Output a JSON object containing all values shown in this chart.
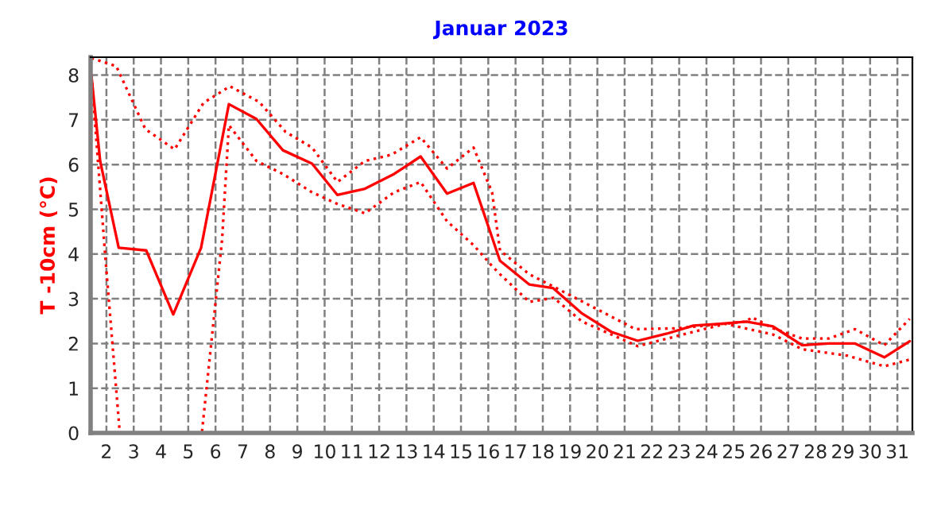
{
  "chart_data": {
    "type": "line",
    "title": "Januar 2023",
    "ylabel": "T -10cm (°C)",
    "xlim": [
      1.42,
      31.55
    ],
    "xticks": [
      2,
      3,
      4,
      5,
      6,
      7,
      8,
      9,
      10,
      11,
      12,
      13,
      14,
      15,
      16,
      17,
      18,
      19,
      20,
      21,
      22,
      23,
      24,
      25,
      26,
      27,
      28,
      29,
      30,
      31
    ],
    "ylim": [
      0,
      8.4
    ],
    "yticks": [
      0,
      1,
      2,
      3,
      4,
      5,
      6,
      7,
      8
    ],
    "grid": true,
    "series": [
      {
        "color": "#ff0000",
        "line_style": "dotted",
        "x": [
          1.45,
          2.36,
          3.43,
          4.5,
          5.56,
          6.53,
          7.6,
          8.57,
          9.54,
          10.47,
          11.48,
          12.45,
          13.52,
          14.49,
          15.46,
          16.14,
          16.43,
          17.5,
          18.87,
          21.4,
          22.94,
          25.47,
          25.66,
          26.44,
          27.51,
          28.48,
          29.45,
          30.52,
          31.45
        ],
        "values": [
          8.38,
          8.2,
          6.79,
          6.34,
          7.38,
          7.75,
          7.4,
          6.73,
          6.38,
          5.61,
          6.08,
          6.22,
          6.61,
          5.91,
          6.38,
          5.38,
          4.08,
          3.55,
          3.12,
          2.32,
          2.34,
          2.49,
          2.59,
          2.34,
          2.11,
          2.11,
          2.32,
          1.96,
          2.55
        ]
      },
      {
        "color": "#ff0000",
        "line_style": "solid",
        "x": [
          1.45,
          1.77,
          2.45,
          3.46,
          4.45,
          5.47,
          6.49,
          7.5,
          8.47,
          9.54,
          10.47,
          11.48,
          12.55,
          13.52,
          14.49,
          15.46,
          16.43,
          17.5,
          18.37,
          19.44,
          20.51,
          21.48,
          22.55,
          23.52,
          24.49,
          25.47,
          26.44,
          27.51,
          28.48,
          29.45,
          30.52,
          31.45
        ],
        "values": [
          7.99,
          6.08,
          4.14,
          4.08,
          2.65,
          4.14,
          7.35,
          7.02,
          6.32,
          6.02,
          5.32,
          5.46,
          5.79,
          6.18,
          5.35,
          5.59,
          3.85,
          3.32,
          3.24,
          2.67,
          2.26,
          2.06,
          2.22,
          2.4,
          2.44,
          2.49,
          2.38,
          1.96,
          2.0,
          2.0,
          1.69,
          2.05
        ]
      },
      {
        "color": "#ff0000",
        "line_style": "dotted",
        "x": [
          1.45,
          1.97,
          2.49,
          5.5,
          6.24,
          6.49,
          7.5,
          8.47,
          9.54,
          10.47,
          11.48,
          12.55,
          13.52,
          14.49,
          15.46,
          16.14,
          16.43,
          17.5,
          18.4,
          19.44,
          21.48,
          23.52,
          24.69,
          26.44,
          27.51,
          29.15,
          30.52,
          31.45
        ],
        "values": [
          7.99,
          3.85,
          0,
          0,
          4.32,
          6.88,
          6.08,
          5.79,
          5.38,
          5.12,
          4.91,
          5.38,
          5.61,
          4.73,
          4.2,
          3.73,
          3.55,
          2.93,
          3.02,
          2.49,
          1.94,
          2.26,
          2.44,
          2.2,
          1.87,
          1.73,
          1.49,
          1.64
        ]
      }
    ]
  }
}
